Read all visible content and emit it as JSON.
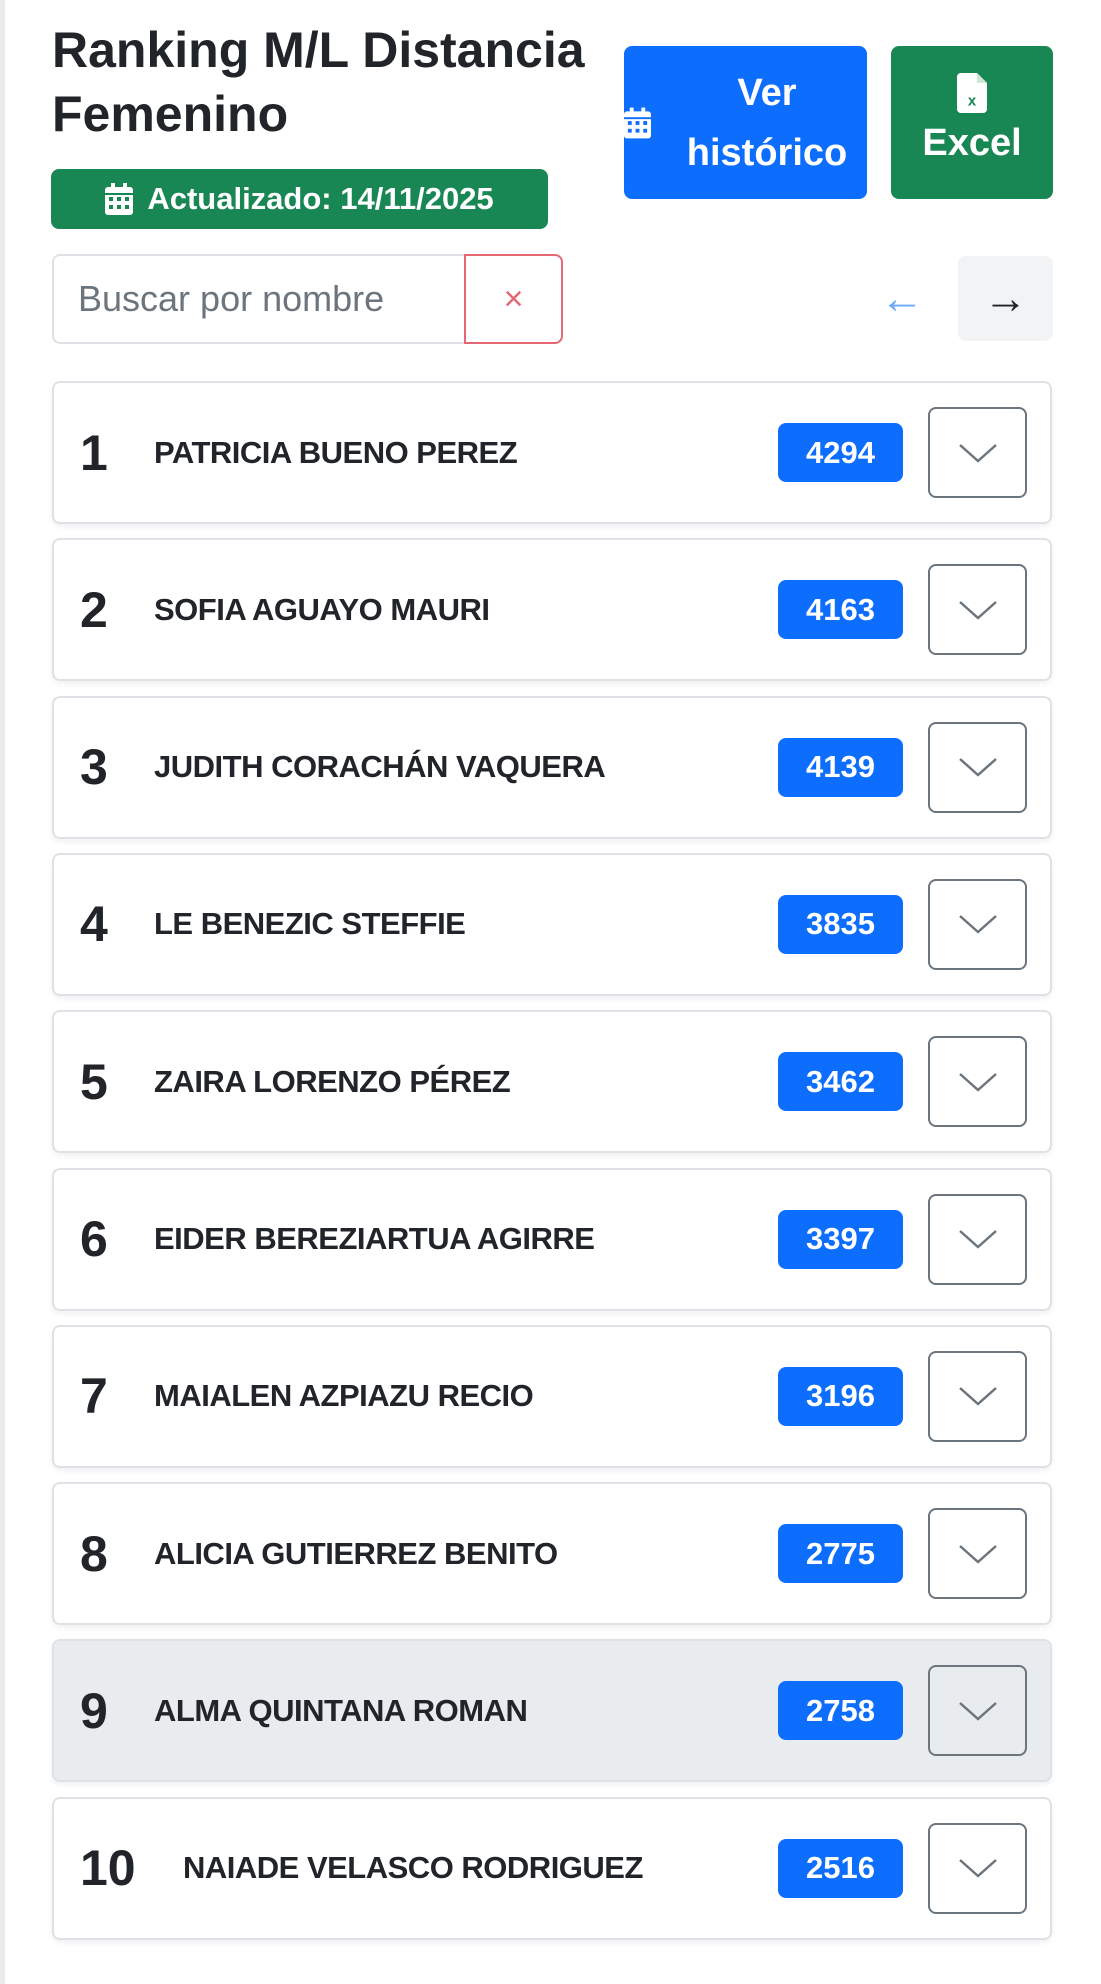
{
  "header": {
    "title": "Ranking M/L Distancia Femenino",
    "updated_label": "Actualizado: 14/11/2025",
    "history_button": "Ver histórico",
    "excel_button": "Excel"
  },
  "search": {
    "placeholder": "Buscar por nombre",
    "value": "",
    "clear_label": "×"
  },
  "pagination": {
    "prev": "←",
    "next": "→"
  },
  "colors": {
    "primary": "#0d6efd",
    "success": "#198754",
    "danger": "#dc3545",
    "highlight_row": "#e9ecef"
  },
  "ranking": [
    {
      "rank": "1",
      "name": "PATRICIA BUENO PEREZ",
      "points": "4294"
    },
    {
      "rank": "2",
      "name": "SOFIA AGUAYO MAURI",
      "points": "4163"
    },
    {
      "rank": "3",
      "name": "JUDITH CORACHÁN VAQUERA",
      "points": "4139"
    },
    {
      "rank": "4",
      "name": "LE BENEZIC STEFFIE",
      "points": "3835"
    },
    {
      "rank": "5",
      "name": "ZAIRA LORENZO PÉREZ",
      "points": "3462"
    },
    {
      "rank": "6",
      "name": "EIDER BEREZIARTUA AGIRRE",
      "points": "3397"
    },
    {
      "rank": "7",
      "name": "MAIALEN AZPIAZU RECIO",
      "points": "3196"
    },
    {
      "rank": "8",
      "name": "ALICIA GUTIERREZ BENITO",
      "points": "2775"
    },
    {
      "rank": "9",
      "name": "ALMA QUINTANA ROMAN",
      "points": "2758",
      "highlighted": true
    },
    {
      "rank": "10",
      "name": "NAIADE VELASCO RODRIGUEZ",
      "points": "2516"
    }
  ]
}
